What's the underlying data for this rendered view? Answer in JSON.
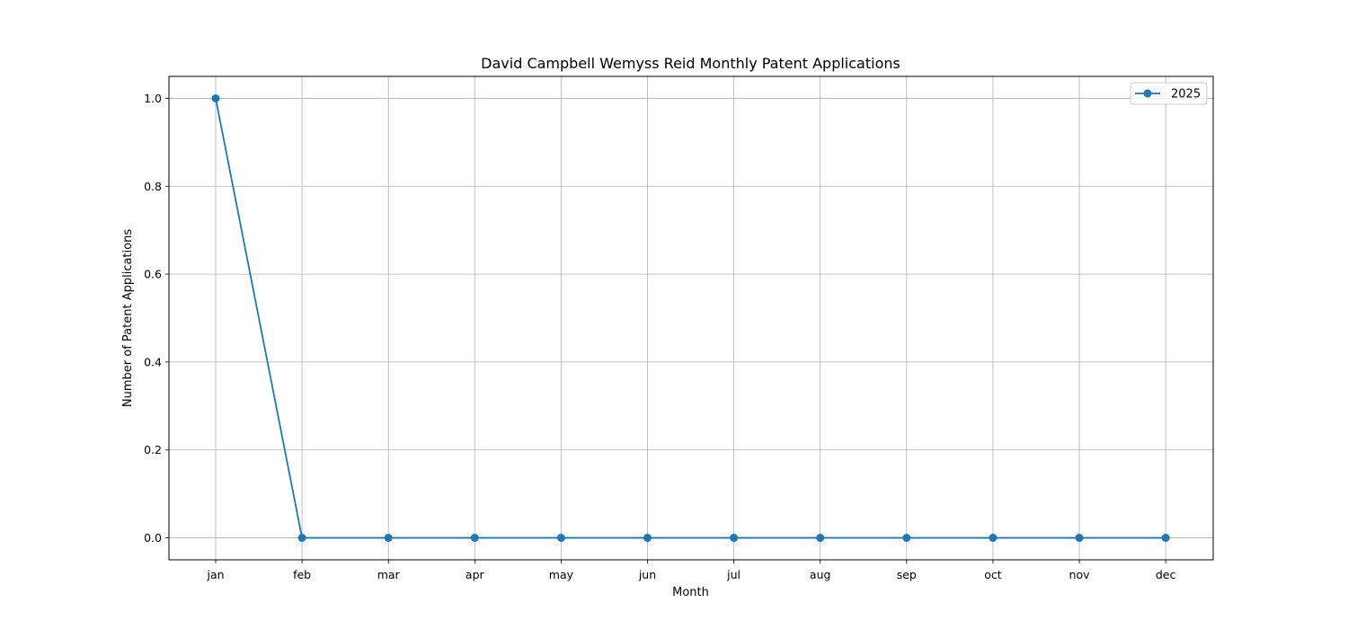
{
  "chart_data": {
    "type": "line",
    "title": "David Campbell Wemyss Reid Monthly Patent Applications",
    "xlabel": "Month",
    "ylabel": "Number of Patent Applications",
    "categories": [
      "jan",
      "feb",
      "mar",
      "apr",
      "may",
      "jun",
      "jul",
      "aug",
      "sep",
      "oct",
      "nov",
      "dec"
    ],
    "series": [
      {
        "name": "2025",
        "values": [
          1,
          0,
          0,
          0,
          0,
          0,
          0,
          0,
          0,
          0,
          0,
          0
        ],
        "color": "#1f77b4",
        "marker": "circle"
      }
    ],
    "ylim": [
      -0.05,
      1.05
    ],
    "yticks": [
      "0.0",
      "0.2",
      "0.4",
      "0.6",
      "0.8",
      "1.0"
    ],
    "grid": true,
    "legend_position": "top-right"
  }
}
